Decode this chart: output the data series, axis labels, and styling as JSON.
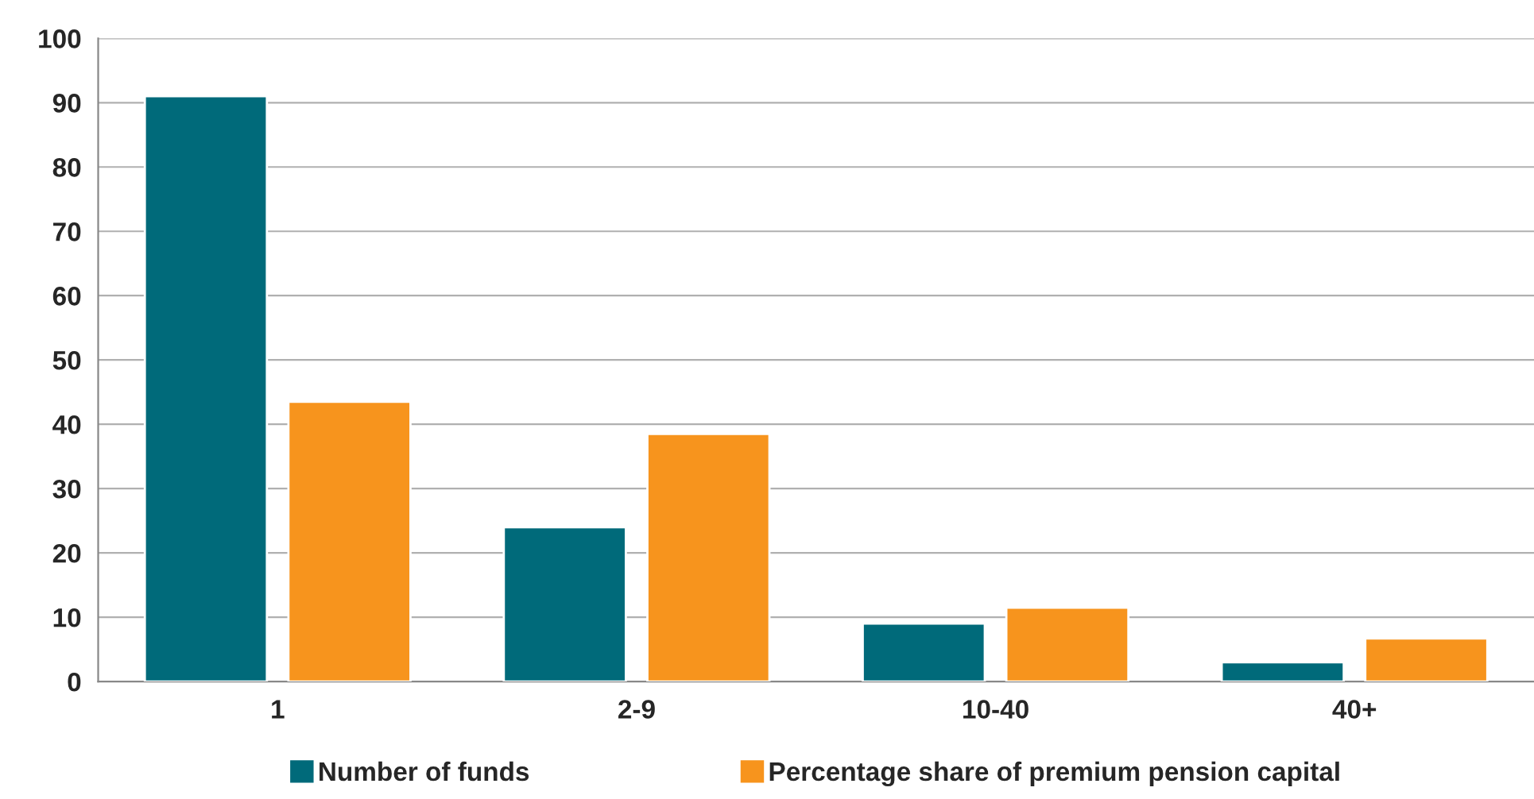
{
  "chart_data": {
    "type": "bar",
    "categories": [
      "1",
      "2-9",
      "10-40",
      "40+"
    ],
    "series": [
      {
        "name": "Number of funds",
        "color": "#006a7a",
        "values": [
          91,
          24,
          9,
          3
        ]
      },
      {
        "name": "Percentage share of premium pension capital",
        "color": "#f7941d",
        "values": [
          43.5,
          38.5,
          11.5,
          6.7
        ]
      }
    ],
    "ylim": [
      0,
      100
    ],
    "yticks": [
      0,
      10,
      20,
      30,
      40,
      50,
      60,
      70,
      80,
      90,
      100
    ],
    "grid": "y",
    "legend": "bottom"
  }
}
